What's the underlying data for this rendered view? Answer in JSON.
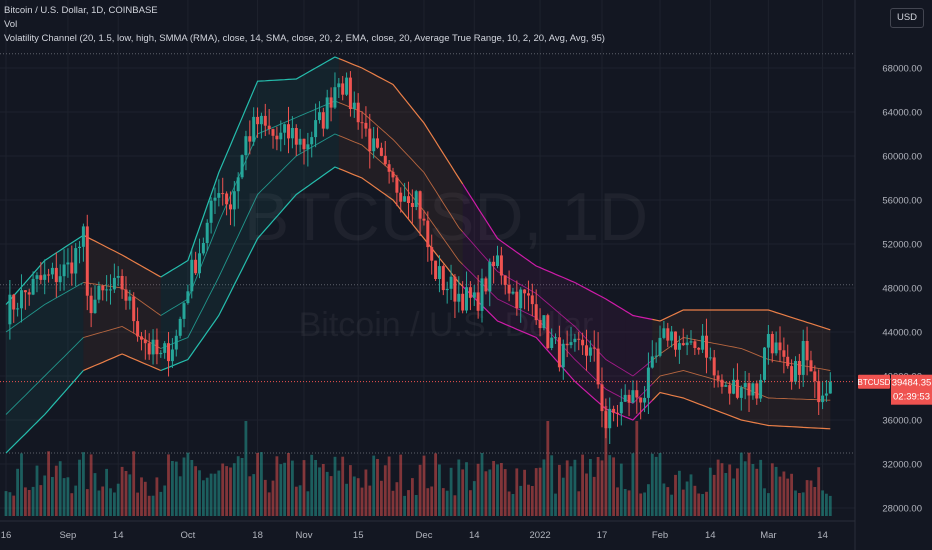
{
  "legend": {
    "symbol_line": "Bitcoin / U.S. Dollar, 1D, COINBASE",
    "vol_line": "Vol",
    "indicator_line": "Volatility Channel (20, 1.5, low, high, SMMA (RMA), close, 14, SMA, close, 20, 2, EMA, close, 20, Average True Range, 10, 2, 20, Avg, Avg, 95)"
  },
  "currency_button": "USD",
  "watermark": {
    "big": "BTCUSD, 1D",
    "small": "Bitcoin / U.S. Dollar"
  },
  "price_tag": {
    "symbol": "BTCUSD",
    "price": "39484.35",
    "countdown": "02:39:53"
  },
  "colors": {
    "background": "#131722",
    "up": "#26a69a",
    "down": "#ef5350",
    "band_teal": "#26c6b4",
    "band_orange": "#f6854b",
    "band_magenta": "#d81bb0",
    "grid": "#1e222d",
    "axis_text": "#b2b5be"
  },
  "chart_data": {
    "type": "candlestick",
    "y_axis": {
      "ticks": [
        28000,
        32000,
        36000,
        40000,
        44000,
        48000,
        52000,
        56000,
        60000,
        64000,
        68000
      ],
      "tick_labels": [
        "28000.00",
        "32000.00",
        "36000.00",
        "40000.00",
        "44000.00",
        "48000.00",
        "52000.00",
        "56000.00",
        "60000.00",
        "64000.00",
        "68000.00"
      ],
      "range": [
        27000,
        70500
      ]
    },
    "x_axis": {
      "labels": [
        "16",
        "Sep",
        "14",
        "Oct",
        "18",
        "Nov",
        "15",
        "Dec",
        "14",
        "2022",
        "17",
        "Feb",
        "14",
        "Mar",
        "14"
      ],
      "label_day_index": [
        0,
        16,
        29,
        47,
        65,
        77,
        91,
        108,
        121,
        138,
        154,
        169,
        182,
        197,
        211
      ],
      "total_days": 214
    },
    "close_series_key": [
      [
        0,
        46000
      ],
      [
        4,
        47200
      ],
      [
        8,
        48500
      ],
      [
        12,
        49000
      ],
      [
        16,
        49800
      ],
      [
        20,
        52500
      ],
      [
        21,
        46500
      ],
      [
        26,
        47500
      ],
      [
        30,
        48200
      ],
      [
        34,
        44500
      ],
      [
        37,
        42500
      ],
      [
        40,
        41500
      ],
      [
        44,
        43500
      ],
      [
        47,
        48500
      ],
      [
        52,
        53500
      ],
      [
        55,
        57500
      ],
      [
        58,
        55500
      ],
      [
        62,
        61500
      ],
      [
        65,
        63000
      ],
      [
        70,
        61500
      ],
      [
        74,
        62000
      ],
      [
        77,
        61000
      ],
      [
        82,
        63500
      ],
      [
        86,
        67500
      ],
      [
        89,
        65000
      ],
      [
        91,
        64000
      ],
      [
        95,
        60500
      ],
      [
        99,
        57500
      ],
      [
        103,
        57000
      ],
      [
        106,
        56500
      ],
      [
        108,
        53500
      ],
      [
        110,
        50000
      ],
      [
        113,
        48500
      ],
      [
        117,
        47500
      ],
      [
        121,
        46500
      ],
      [
        124,
        48500
      ],
      [
        127,
        50500
      ],
      [
        131,
        47500
      ],
      [
        134,
        47000
      ],
      [
        137,
        46300
      ],
      [
        140,
        43500
      ],
      [
        143,
        42000
      ],
      [
        146,
        41800
      ],
      [
        149,
        43000
      ],
      [
        152,
        41500
      ],
      [
        155,
        35500
      ],
      [
        158,
        37000
      ],
      [
        161,
        38000
      ],
      [
        165,
        38500
      ],
      [
        169,
        42500
      ],
      [
        171,
        44000
      ],
      [
        174,
        43000
      ],
      [
        177,
        42000
      ],
      [
        180,
        43800
      ],
      [
        183,
        40000
      ],
      [
        186,
        38500
      ],
      [
        190,
        39500
      ],
      [
        194,
        38500
      ],
      [
        197,
        44000
      ],
      [
        200,
        41500
      ],
      [
        203,
        39000
      ],
      [
        206,
        42500
      ],
      [
        209,
        38500
      ],
      [
        212,
        39500
      ],
      [
        213,
        39484
      ]
    ],
    "bands": {
      "outer_upper": [
        [
          0,
          46500
        ],
        [
          10,
          50500
        ],
        [
          20,
          52800
        ],
        [
          30,
          51000
        ],
        [
          40,
          49000
        ],
        [
          47,
          50500
        ],
        [
          55,
          58500
        ],
        [
          65,
          66800
        ],
        [
          75,
          67000
        ],
        [
          85,
          69000
        ],
        [
          92,
          68000
        ],
        [
          100,
          66500
        ],
        [
          108,
          63000
        ],
        [
          117,
          58000
        ],
        [
          127,
          52500
        ],
        [
          137,
          50000
        ],
        [
          147,
          48500
        ],
        [
          155,
          47000
        ],
        [
          162,
          45500
        ],
        [
          169,
          45000
        ],
        [
          175,
          46000
        ],
        [
          190,
          46000
        ],
        [
          197,
          46000
        ],
        [
          213,
          44200
        ]
      ],
      "outer_lower": [
        [
          0,
          33000
        ],
        [
          10,
          36500
        ],
        [
          20,
          40500
        ],
        [
          30,
          42000
        ],
        [
          40,
          40500
        ],
        [
          47,
          41500
        ],
        [
          55,
          45500
        ],
        [
          65,
          52500
        ],
        [
          75,
          56500
        ],
        [
          85,
          59000
        ],
        [
          92,
          58000
        ],
        [
          100,
          56000
        ],
        [
          108,
          52500
        ],
        [
          117,
          48500
        ],
        [
          127,
          45000
        ],
        [
          137,
          43500
        ],
        [
          147,
          39500
        ],
        [
          155,
          37000
        ],
        [
          162,
          36000
        ],
        [
          169,
          38500
        ],
        [
          175,
          38000
        ],
        [
          190,
          36000
        ],
        [
          197,
          35500
        ],
        [
          213,
          35200
        ]
      ],
      "inner_upper": [
        [
          0,
          44000
        ],
        [
          10,
          46500
        ],
        [
          20,
          48500
        ],
        [
          30,
          48000
        ],
        [
          40,
          45500
        ],
        [
          47,
          47000
        ],
        [
          55,
          54000
        ],
        [
          65,
          62000
        ],
        [
          75,
          63500
        ],
        [
          85,
          65000
        ],
        [
          92,
          64000
        ],
        [
          100,
          61500
        ],
        [
          108,
          58500
        ],
        [
          117,
          53500
        ],
        [
          127,
          49500
        ],
        [
          137,
          47500
        ],
        [
          147,
          44500
        ],
        [
          155,
          41500
        ],
        [
          162,
          40000
        ],
        [
          169,
          42000
        ],
        [
          175,
          43500
        ],
        [
          190,
          42500
        ],
        [
          197,
          41500
        ],
        [
          213,
          40500
        ]
      ],
      "inner_lower": [
        [
          0,
          36500
        ],
        [
          10,
          40000
        ],
        [
          20,
          43500
        ],
        [
          30,
          44500
        ],
        [
          40,
          42500
        ],
        [
          47,
          43500
        ],
        [
          55,
          49000
        ],
        [
          65,
          56500
        ],
        [
          75,
          60000
        ],
        [
          85,
          62000
        ],
        [
          92,
          61000
        ],
        [
          100,
          58500
        ],
        [
          108,
          55000
        ],
        [
          117,
          50500
        ],
        [
          127,
          47000
        ],
        [
          137,
          45300
        ],
        [
          147,
          41500
        ],
        [
          155,
          38800
        ],
        [
          162,
          37500
        ],
        [
          169,
          40000
        ],
        [
          175,
          40500
        ],
        [
          190,
          39000
        ],
        [
          197,
          38000
        ],
        [
          213,
          37800
        ]
      ],
      "band_color_segments": [
        {
          "from_day": 0,
          "to_day": 20,
          "color": "teal"
        },
        {
          "from_day": 20,
          "to_day": 40,
          "color": "orange"
        },
        {
          "from_day": 40,
          "to_day": 86,
          "color": "teal"
        },
        {
          "from_day": 86,
          "to_day": 118,
          "color": "orange"
        },
        {
          "from_day": 118,
          "to_day": 160,
          "color": "magenta"
        },
        {
          "from_day": 160,
          "to_day": 167,
          "color": "magenta"
        },
        {
          "from_day": 167,
          "to_day": 213,
          "color": "orange"
        }
      ]
    },
    "last_price": 39484.35
  }
}
